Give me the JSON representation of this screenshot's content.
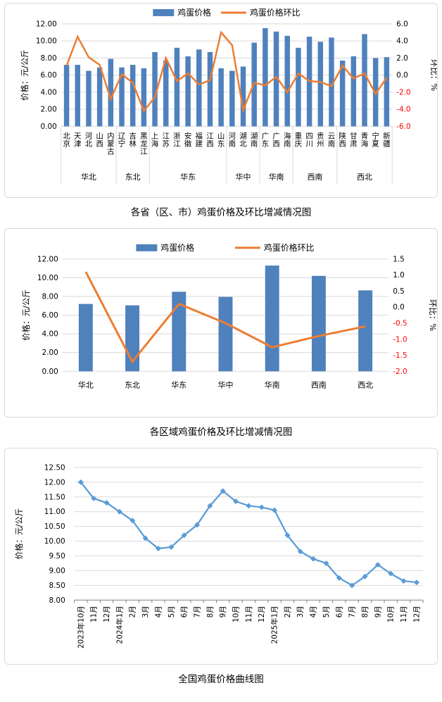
{
  "colors": {
    "bar": "#4f81bd",
    "line": "#ed7d31",
    "curve": "#5b9bd5",
    "negative": "#ff0000",
    "grid": "#d9d9d9",
    "axis": "#808080",
    "text": "#000000"
  },
  "charts": [
    {
      "id": "province",
      "type": "combo",
      "title": "各省（区、市）鸡蛋价格及环比增减情况图",
      "legend": [
        "鸡蛋价格",
        "鸡蛋价格环比"
      ],
      "y_left": {
        "label": "价格：元/公斤",
        "min": 0,
        "max": 12,
        "step": 2,
        "decimals": 2
      },
      "y_right": {
        "label": "环比：%",
        "min": -6,
        "max": 6,
        "step": 2,
        "decimals": 1
      },
      "groups": [
        {
          "region": "华北",
          "provinces": [
            "北京",
            "天津",
            "河北",
            "山西",
            "内蒙古"
          ]
        },
        {
          "region": "东北",
          "provinces": [
            "辽宁",
            "吉林",
            "黑龙江"
          ]
        },
        {
          "region": "华东",
          "provinces": [
            "上海",
            "江苏",
            "浙江",
            "安徽",
            "福建",
            "江西",
            "山东"
          ]
        },
        {
          "region": "华中",
          "provinces": [
            "河南",
            "湖北",
            "湖南"
          ]
        },
        {
          "region": "华南",
          "provinces": [
            "广东",
            "广西",
            "海南"
          ]
        },
        {
          "region": "西南",
          "provinces": [
            "重庆",
            "四川",
            "贵州",
            "云南"
          ]
        },
        {
          "region": "西北",
          "provinces": [
            "陕西",
            "甘肃",
            "青海",
            "宁夏",
            "新疆"
          ]
        }
      ],
      "price": [
        7.2,
        7.2,
        6.5,
        6.9,
        7.9,
        6.9,
        7.2,
        6.8,
        8.7,
        7.7,
        9.2,
        8.2,
        9.0,
        8.7,
        6.8,
        6.5,
        7.0,
        9.8,
        11.5,
        11.1,
        10.6,
        9.2,
        10.5,
        9.9,
        10.4,
        7.7,
        8.2,
        10.8,
        8.0,
        8.1
      ],
      "mom": [
        1.1,
        4.5,
        2.1,
        1.2,
        -2.8,
        0.1,
        -0.9,
        -4.2,
        -2.6,
        2.0,
        -0.7,
        0.2,
        -1.1,
        -0.6,
        5.0,
        3.5,
        -4.1,
        -0.9,
        -1.2,
        -0.2,
        -2.0,
        0.2,
        -0.7,
        -0.8,
        -1.3,
        1.1,
        -0.4,
        0.2,
        -2.2,
        -0.3
      ]
    },
    {
      "id": "region",
      "type": "combo",
      "title": "各区域鸡蛋价格及环比增减情况图",
      "legend": [
        "鸡蛋价格",
        "鸡蛋价格环比"
      ],
      "y_left": {
        "label": "价格：元/公斤",
        "min": 0,
        "max": 12,
        "step": 2,
        "decimals": 2
      },
      "y_right": {
        "label": "环比：%",
        "min": -2,
        "max": 1.5,
        "step": 0.5,
        "decimals": 1
      },
      "categories": [
        "华北",
        "东北",
        "华东",
        "华中",
        "华南",
        "西南",
        "西北"
      ],
      "price": [
        7.2,
        7.05,
        8.5,
        7.95,
        11.3,
        10.2,
        8.65
      ],
      "mom": [
        1.1,
        -1.7,
        0.1,
        -0.5,
        -1.25,
        -0.9,
        -0.6
      ]
    },
    {
      "id": "national",
      "type": "line",
      "title": "全国鸡蛋价格曲线图",
      "y": {
        "label": "价格：元/公斤",
        "min": 8,
        "max": 12.5,
        "step": 0.5,
        "decimals": 2
      },
      "categories": [
        "2023年10月",
        "11月",
        "12月",
        "2024年1月",
        "2月",
        "3月",
        "4月",
        "5月",
        "6月",
        "7月",
        "8月",
        "9月",
        "10月",
        "11月",
        "12月",
        "2025年1月",
        "2月",
        "3月",
        "4月",
        "5月",
        "6月",
        "7月",
        "8月",
        "9月",
        "10月",
        "11月",
        "12月"
      ],
      "values": [
        12.0,
        11.45,
        11.3,
        11.0,
        10.7,
        10.1,
        9.75,
        9.8,
        10.2,
        10.55,
        11.2,
        11.7,
        11.35,
        11.2,
        11.15,
        11.05,
        10.2,
        9.65,
        9.4,
        9.25,
        8.75,
        8.5,
        8.8,
        9.2,
        8.9,
        8.65,
        8.6
      ]
    }
  ]
}
